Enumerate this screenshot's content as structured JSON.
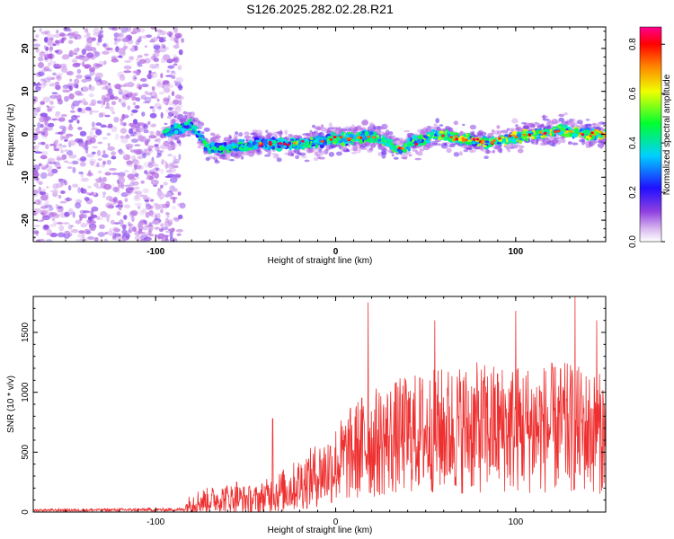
{
  "title": "S126.2025.282.02.28.R21",
  "chart_data": [
    {
      "type": "heatmap",
      "name": "spectrogram",
      "xlabel": "Height of straight line (km)",
      "ylabel": "Frequency (Hz)",
      "xlim": [
        -168,
        150
      ],
      "ylim": [
        -25,
        25
      ],
      "x_ticks": [
        -100,
        0,
        100
      ],
      "y_ticks": [
        -20,
        -10,
        0,
        10,
        20
      ],
      "colorbar": {
        "label": "Normalized spectral amplitude",
        "range": [
          0.0,
          0.87
        ],
        "ticks": [
          0.0,
          0.2,
          0.4,
          0.6,
          0.8
        ],
        "colors": [
          "#ffffff",
          "#b060e0",
          "#3010ff",
          "#00e0ff",
          "#00ff40",
          "#ffff00",
          "#ff8000",
          "#ff0000",
          "#ff00a0"
        ]
      },
      "noise_region_x": [
        -168,
        -85
      ],
      "signal_track": [
        {
          "x": -95,
          "y": 0.5
        },
        {
          "x": -80,
          "y": 2.0
        },
        {
          "x": -70,
          "y": -3.5
        },
        {
          "x": -55,
          "y": -3.0
        },
        {
          "x": -40,
          "y": -2.0
        },
        {
          "x": -25,
          "y": -2.5
        },
        {
          "x": -10,
          "y": -1.5
        },
        {
          "x": 5,
          "y": -1.0
        },
        {
          "x": 20,
          "y": -0.5
        },
        {
          "x": 35,
          "y": -3.5
        },
        {
          "x": 55,
          "y": 0.0
        },
        {
          "x": 70,
          "y": -1.0
        },
        {
          "x": 85,
          "y": -2.0
        },
        {
          "x": 95,
          "y": -1.0
        },
        {
          "x": 110,
          "y": 0.0
        },
        {
          "x": 125,
          "y": 1.0
        },
        {
          "x": 140,
          "y": 0.0
        },
        {
          "x": 150,
          "y": 0.0
        }
      ]
    },
    {
      "type": "line",
      "name": "snr",
      "xlabel": "Height of straight line (km)",
      "ylabel": "SNR (10 * v/v)",
      "xlim": [
        -168,
        150
      ],
      "ylim": [
        0,
        1800
      ],
      "x_ticks": [
        -100,
        0,
        100
      ],
      "y_ticks": [
        0,
        500,
        1000,
        1500
      ],
      "color": "#ee3030",
      "envelope": [
        {
          "x": -168,
          "mean": 15,
          "spread": 10
        },
        {
          "x": -85,
          "mean": 20,
          "spread": 15
        },
        {
          "x": -80,
          "mean": 80,
          "spread": 100
        },
        {
          "x": -60,
          "mean": 120,
          "spread": 120
        },
        {
          "x": -45,
          "mean": 100,
          "spread": 120
        },
        {
          "x": -25,
          "mean": 200,
          "spread": 200
        },
        {
          "x": -5,
          "mean": 350,
          "spread": 300
        },
        {
          "x": 15,
          "mean": 550,
          "spread": 450
        },
        {
          "x": 40,
          "mean": 650,
          "spread": 500
        },
        {
          "x": 70,
          "mean": 700,
          "spread": 550
        },
        {
          "x": 100,
          "mean": 700,
          "spread": 550
        },
        {
          "x": 130,
          "mean": 700,
          "spread": 550
        },
        {
          "x": 150,
          "mean": 650,
          "spread": 500
        }
      ],
      "peaks": [
        {
          "x": -55,
          "y": 250
        },
        {
          "x": -35,
          "y": 780
        },
        {
          "x": 18,
          "y": 1750
        },
        {
          "x": 55,
          "y": 1600
        },
        {
          "x": 100,
          "y": 1680
        },
        {
          "x": 133,
          "y": 1800
        },
        {
          "x": 145,
          "y": 1600
        }
      ]
    }
  ]
}
